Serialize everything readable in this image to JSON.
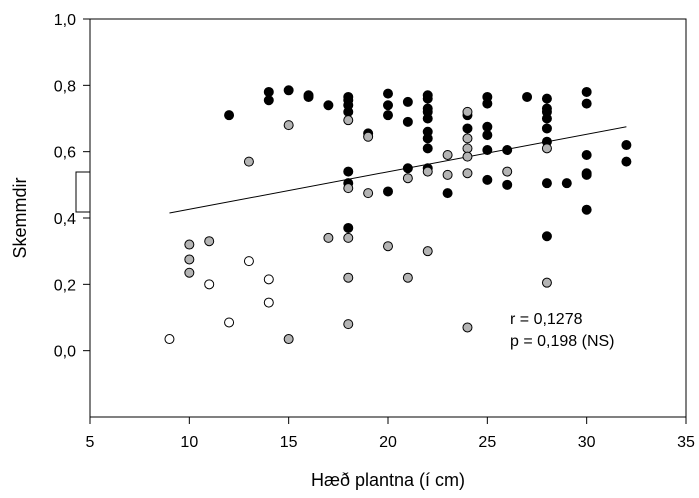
{
  "chart_data": {
    "type": "scatter",
    "xlabel": "Hæð plantna (í cm)",
    "ylabel": "Skemmdir",
    "xlim": [
      5,
      35
    ],
    "ylim": [
      -0.2,
      1.0
    ],
    "x_ticks": [
      "5",
      "10",
      "15",
      "20",
      "25",
      "30",
      "35"
    ],
    "y_ticks": [
      "0,0",
      "0,2",
      "0,4",
      "0,6",
      "0,8",
      "1,0"
    ],
    "grid": false,
    "annotations": [
      "r = 0,1278",
      "p = 0,198 (NS)"
    ],
    "regression_line": {
      "x": [
        9,
        32
      ],
      "y": [
        0.415,
        0.675
      ]
    },
    "series": [
      {
        "fill": "#000000",
        "points": [
          [
            12,
            0.71
          ],
          [
            14,
            0.78
          ],
          [
            14,
            0.755
          ],
          [
            15,
            0.785
          ],
          [
            16,
            0.77
          ],
          [
            16,
            0.765
          ],
          [
            17,
            0.74
          ],
          [
            18,
            0.765
          ],
          [
            18,
            0.755
          ],
          [
            18,
            0.74
          ],
          [
            18,
            0.72
          ],
          [
            18,
            0.54
          ],
          [
            18,
            0.505
          ],
          [
            18,
            0.37
          ],
          [
            19,
            0.655
          ],
          [
            20,
            0.775
          ],
          [
            20,
            0.74
          ],
          [
            20,
            0.71
          ],
          [
            20,
            0.48
          ],
          [
            21,
            0.75
          ],
          [
            21,
            0.69
          ],
          [
            21,
            0.55
          ],
          [
            22,
            0.77
          ],
          [
            22,
            0.76
          ],
          [
            22,
            0.73
          ],
          [
            22,
            0.72
          ],
          [
            22,
            0.7
          ],
          [
            22,
            0.66
          ],
          [
            22,
            0.64
          ],
          [
            22,
            0.61
          ],
          [
            22,
            0.55
          ],
          [
            23,
            0.475
          ],
          [
            24,
            0.71
          ],
          [
            24,
            0.67
          ],
          [
            25,
            0.765
          ],
          [
            25,
            0.745
          ],
          [
            25,
            0.675
          ],
          [
            25,
            0.65
          ],
          [
            25,
            0.605
          ],
          [
            25,
            0.515
          ],
          [
            26,
            0.605
          ],
          [
            26,
            0.5
          ],
          [
            27,
            0.765
          ],
          [
            28,
            0.76
          ],
          [
            28,
            0.73
          ],
          [
            28,
            0.72
          ],
          [
            28,
            0.7
          ],
          [
            28,
            0.67
          ],
          [
            28,
            0.63
          ],
          [
            28,
            0.505
          ],
          [
            28,
            0.345
          ],
          [
            29,
            0.505
          ],
          [
            30,
            0.78
          ],
          [
            30,
            0.745
          ],
          [
            30,
            0.59
          ],
          [
            30,
            0.535
          ],
          [
            30,
            0.53
          ],
          [
            30,
            0.425
          ],
          [
            32,
            0.62
          ],
          [
            32,
            0.57
          ]
        ]
      },
      {
        "fill": "#b4b4b4",
        "points": [
          [
            10,
            0.32
          ],
          [
            10,
            0.275
          ],
          [
            10,
            0.235
          ],
          [
            11,
            0.33
          ],
          [
            13,
            0.57
          ],
          [
            15,
            0.68
          ],
          [
            15,
            0.035
          ],
          [
            17,
            0.34
          ],
          [
            18,
            0.695
          ],
          [
            18,
            0.49
          ],
          [
            18,
            0.34
          ],
          [
            18,
            0.22
          ],
          [
            18,
            0.08
          ],
          [
            19,
            0.645
          ],
          [
            19,
            0.475
          ],
          [
            20,
            0.315
          ],
          [
            21,
            0.52
          ],
          [
            21,
            0.22
          ],
          [
            22,
            0.54
          ],
          [
            22,
            0.3
          ],
          [
            23,
            0.59
          ],
          [
            23,
            0.53
          ],
          [
            24,
            0.72
          ],
          [
            24,
            0.64
          ],
          [
            24,
            0.61
          ],
          [
            24,
            0.585
          ],
          [
            24,
            0.535
          ],
          [
            24,
            0.07
          ],
          [
            26,
            0.54
          ],
          [
            28,
            0.61
          ],
          [
            28,
            0.205
          ]
        ]
      },
      {
        "fill": "#ffffff",
        "points": [
          [
            9,
            0.035
          ],
          [
            11,
            0.2
          ],
          [
            12,
            0.085
          ],
          [
            13,
            0.27
          ],
          [
            14,
            0.215
          ],
          [
            14,
            0.145
          ]
        ]
      }
    ]
  }
}
